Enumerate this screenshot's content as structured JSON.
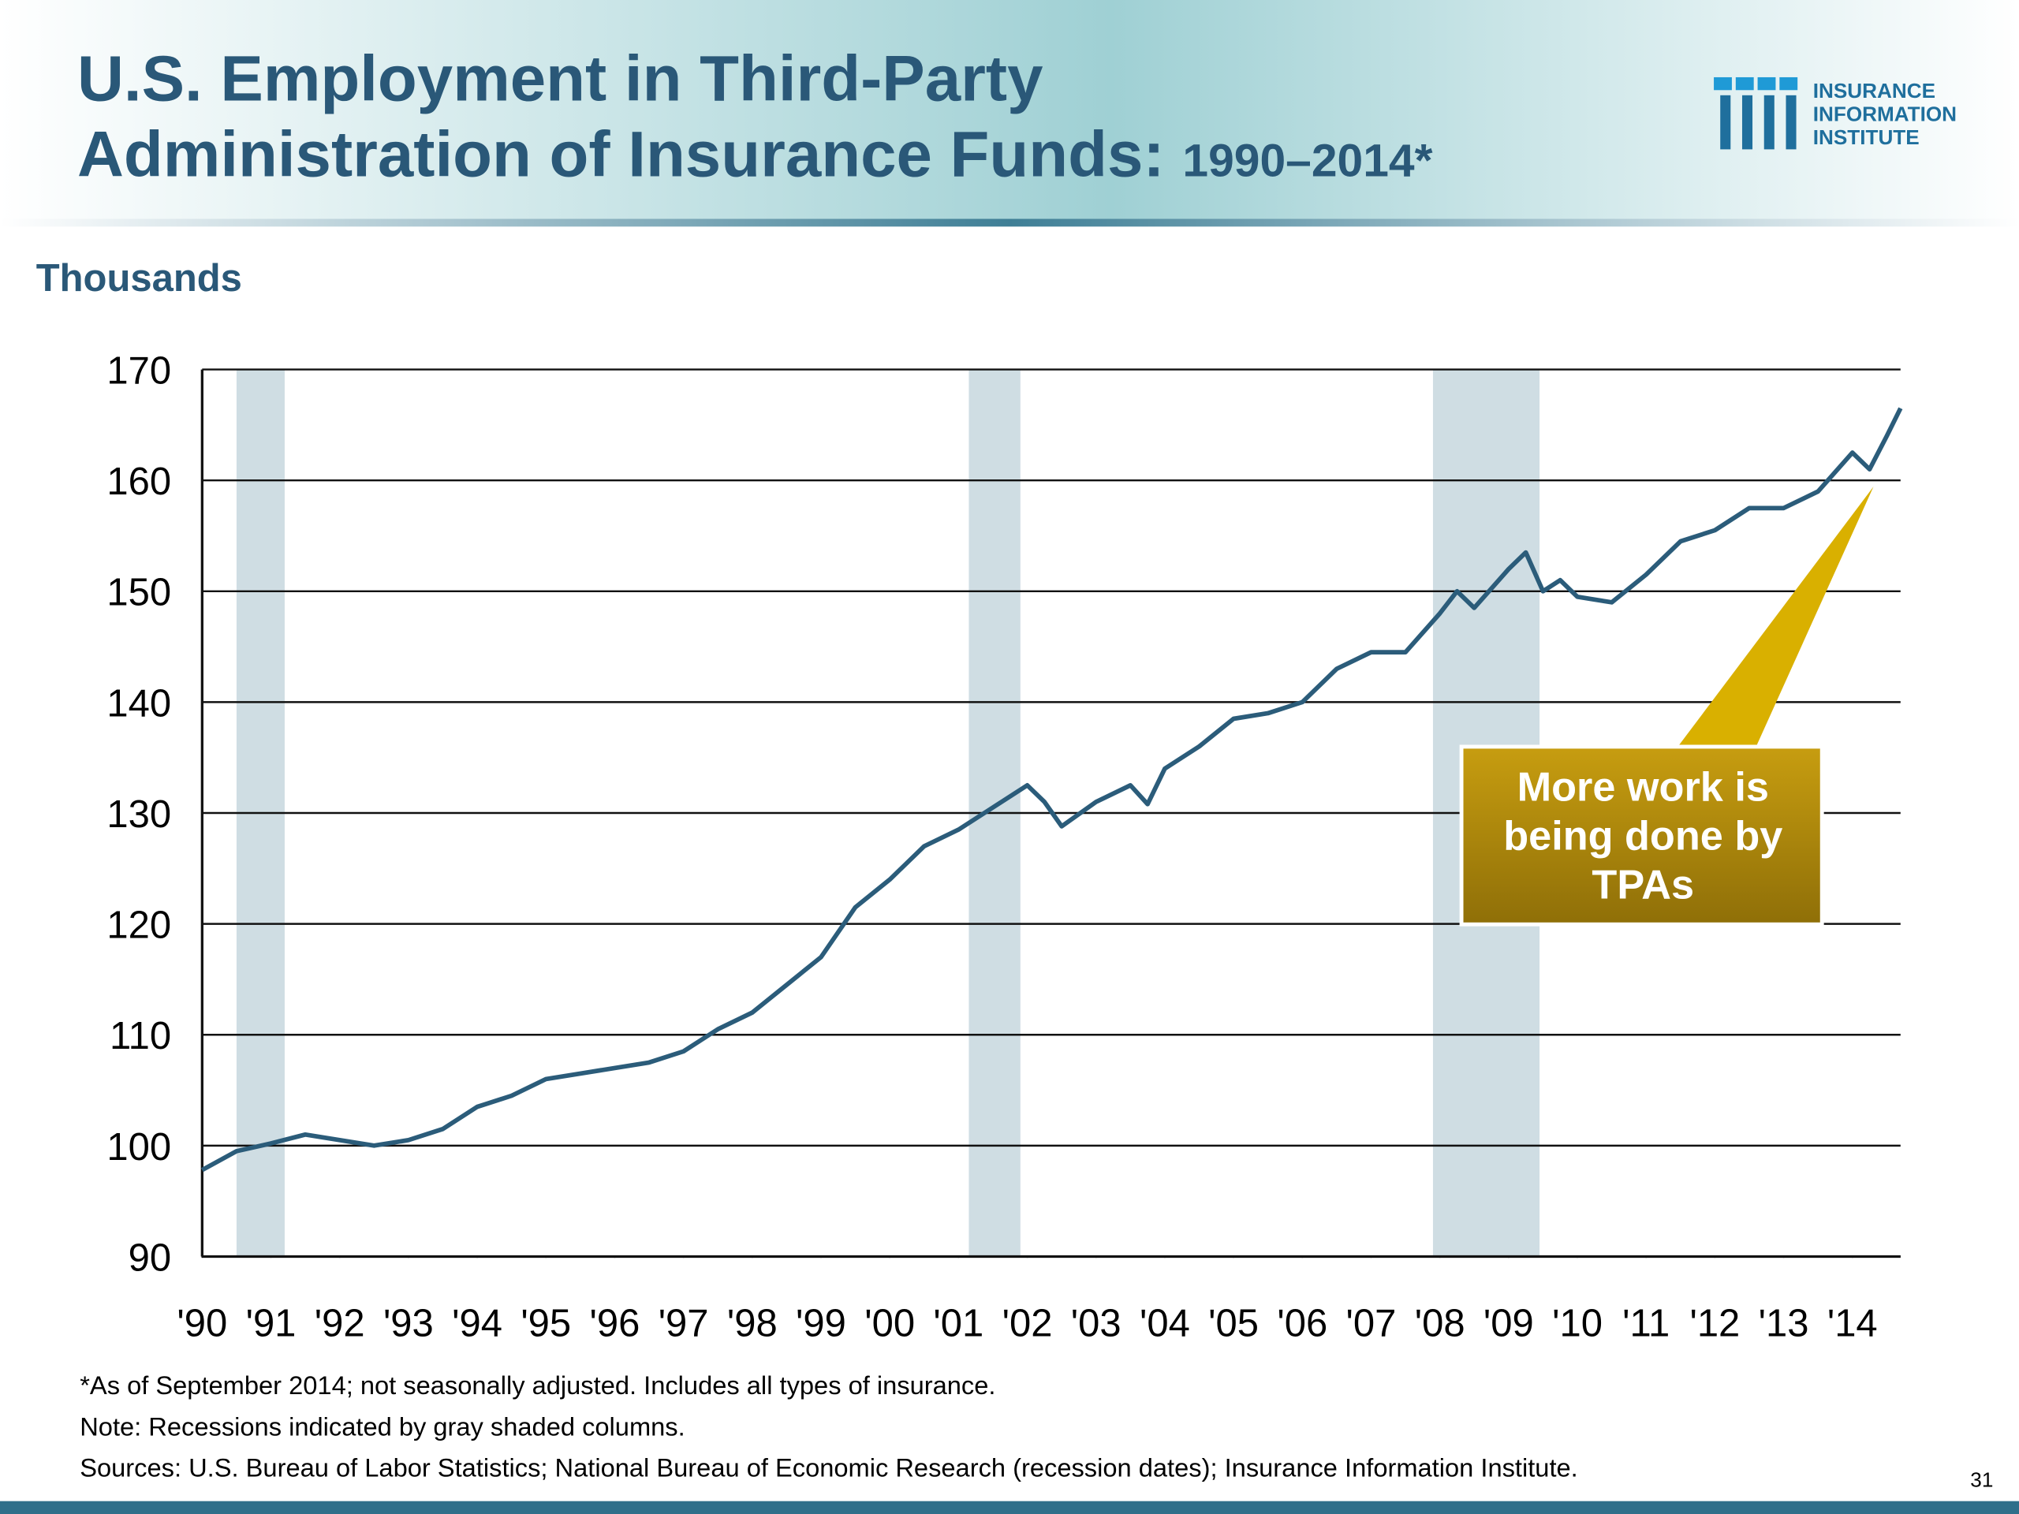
{
  "chart_data": {
    "type": "line",
    "title": [
      "U.S. Employment in Third-Party",
      "Administration of Insurance Funds:"
    ],
    "subtitle": "1990–2014*",
    "y_label": "Thousands",
    "x": [
      1990,
      1990.5,
      1991,
      1991.5,
      1992,
      1992.5,
      1993,
      1993.5,
      1994,
      1994.5,
      1995,
      1995.5,
      1996,
      1996.5,
      1997,
      1997.5,
      1998,
      1998.5,
      1999,
      1999.5,
      2000,
      2000.5,
      2001,
      2001.5,
      2002,
      2002.25,
      2002.5,
      2003,
      2003.5,
      2003.75,
      2004,
      2004.5,
      2005,
      2005.5,
      2006,
      2006.5,
      2007,
      2007.5,
      2008,
      2008.25,
      2008.5,
      2009,
      2009.25,
      2009.5,
      2009.75,
      2010,
      2010.5,
      2011,
      2011.5,
      2012,
      2012.5,
      2013,
      2013.5,
      2014,
      2014.25,
      2014.5,
      2014.7
    ],
    "series": [
      {
        "color": "#2b5c7a",
        "values": [
          97.8,
          99.5,
          100.2,
          101,
          100.5,
          100,
          100.5,
          101.5,
          103.5,
          104.5,
          106,
          106.5,
          107,
          107.5,
          108.5,
          110.5,
          112,
          114.5,
          117,
          121.5,
          124,
          127,
          128.5,
          130.5,
          132.5,
          131,
          128.8,
          131,
          132.5,
          130.8,
          134,
          136,
          138.5,
          139,
          140,
          143,
          144.5,
          144.5,
          148,
          150,
          148.5,
          152,
          153.5,
          150,
          151,
          149.5,
          149,
          151.5,
          154.5,
          155.5,
          157.5,
          157.5,
          159,
          162.5,
          161,
          164,
          166.5
        ]
      }
    ],
    "recessions": [
      [
        1990.5,
        1991.2
      ],
      [
        2001.15,
        2001.9
      ],
      [
        2007.9,
        2009.45
      ]
    ],
    "recession_color": "#cfdde3",
    "xlim": [
      1990,
      2014.7
    ],
    "xticks": [
      {
        "value": 1990,
        "label": "'90"
      },
      {
        "value": 1991,
        "label": "'91"
      },
      {
        "value": 1992,
        "label": "'92"
      },
      {
        "value": 1993,
        "label": "'93"
      },
      {
        "value": 1994,
        "label": "'94"
      },
      {
        "value": 1995,
        "label": "'95"
      },
      {
        "value": 1996,
        "label": "'96"
      },
      {
        "value": 1997,
        "label": "'97"
      },
      {
        "value": 1998,
        "label": "'98"
      },
      {
        "value": 1999,
        "label": "'99"
      },
      {
        "value": 2000,
        "label": "'00"
      },
      {
        "value": 2001,
        "label": "'01"
      },
      {
        "value": 2002,
        "label": "'02"
      },
      {
        "value": 2003,
        "label": "'03"
      },
      {
        "value": 2004,
        "label": "'04"
      },
      {
        "value": 2005,
        "label": "'05"
      },
      {
        "value": 2006,
        "label": "'06"
      },
      {
        "value": 2007,
        "label": "'07"
      },
      {
        "value": 2008,
        "label": "'08"
      },
      {
        "value": 2009,
        "label": "'09"
      },
      {
        "value": 2010,
        "label": "'10"
      },
      {
        "value": 2011,
        "label": "'11"
      },
      {
        "value": 2012,
        "label": "'12"
      },
      {
        "value": 2013,
        "label": "'13"
      },
      {
        "value": 2014,
        "label": "'14"
      }
    ],
    "ylim": [
      90,
      170
    ],
    "yticks": [
      90,
      100,
      110,
      120,
      130,
      140,
      150,
      160,
      170
    ],
    "grid": true,
    "annotation": [
      "More work is",
      "being done by",
      "TPAs"
    ],
    "notes": [
      "*As of September 2014; not seasonally adjusted. Includes all types of insurance.",
      "Note: Recessions indicated by gray shaded columns.",
      "Sources: U.S. Bureau of Labor Statistics;  National Bureau of Economic Research (recession dates); Insurance Information Institute."
    ]
  },
  "logo": [
    "INSURANCE",
    "INFORMATION",
    "INSTITUTE"
  ],
  "page_number": "31"
}
